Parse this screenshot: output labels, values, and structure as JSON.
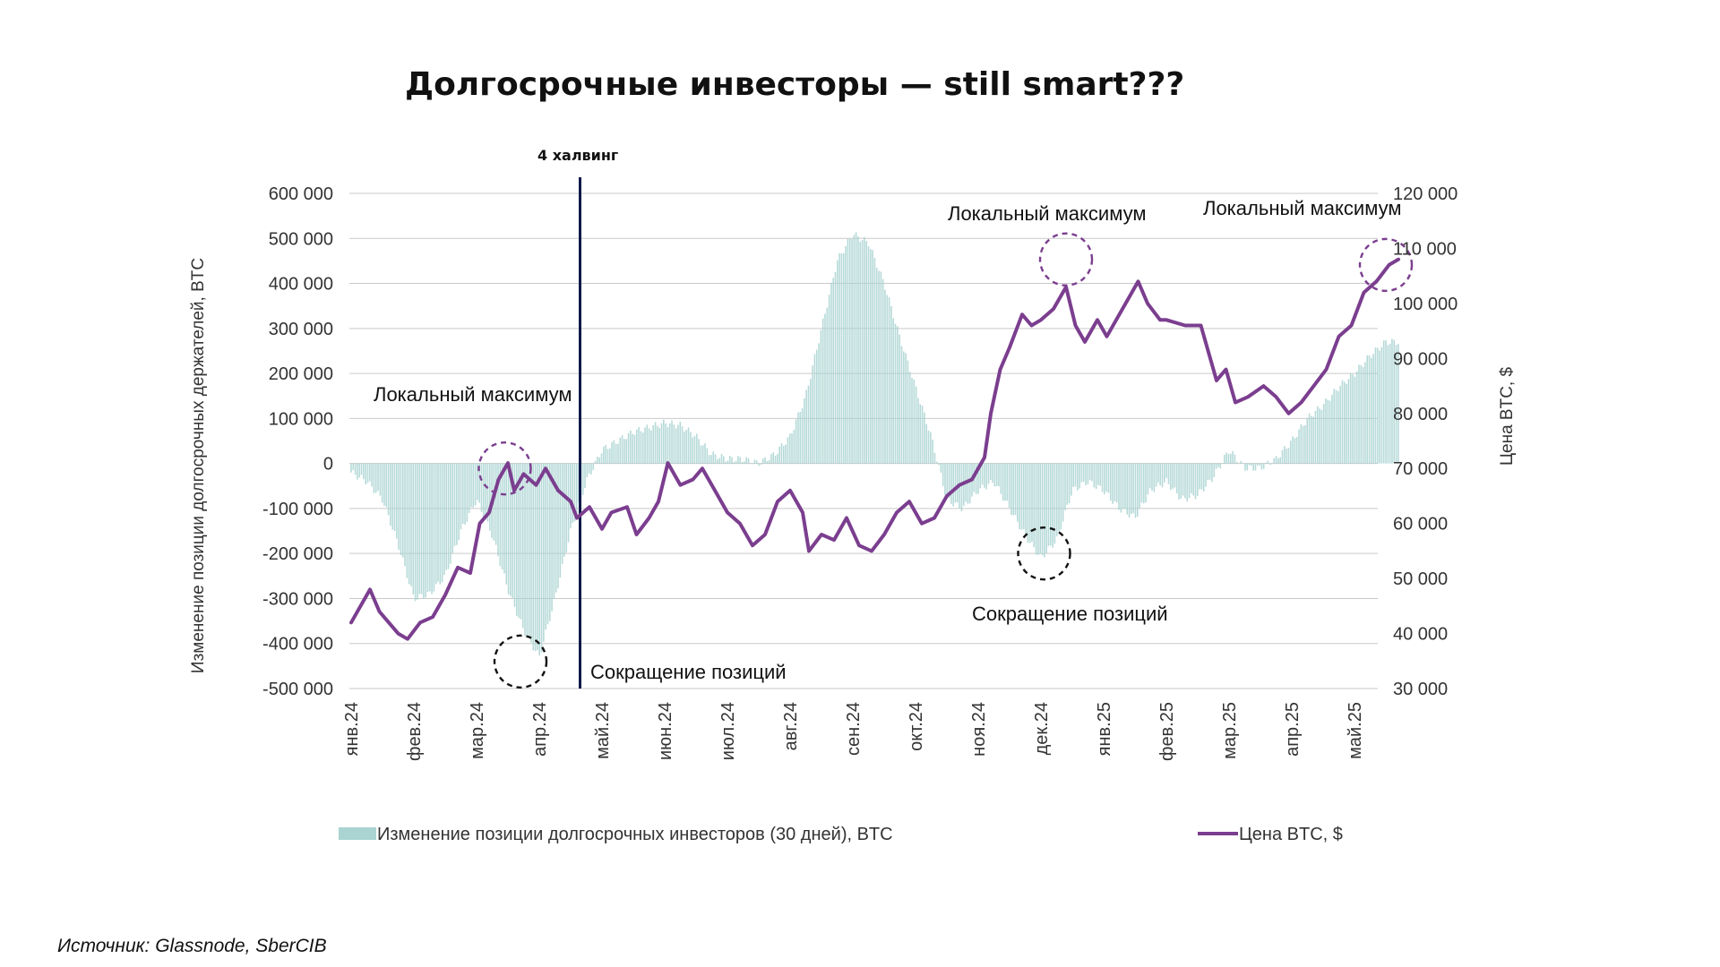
{
  "title": "Долгосрочные инвесторы — still smart???",
  "source": "Источник: Glassnode, SberCIB",
  "chart_data": {
    "type": "bar+line",
    "categories": [
      "янв.24",
      "фев.24",
      "мар.24",
      "апр.24",
      "май.24",
      "июн.24",
      "июл.24",
      "авг.24",
      "сен.24",
      "окт.24",
      "ноя.24",
      "дек.24",
      "янв.25",
      "фев.25",
      "мар.25",
      "апр.25",
      "май.25"
    ],
    "y_left": {
      "label": "Изменение позиции долгосрочных держателей, BTC",
      "ticks": [
        "600 000",
        "500 000",
        "400 000",
        "300 000",
        "200 000",
        "100 000",
        "0",
        "-100 000",
        "-200 000",
        "-300 000",
        "-400 000",
        "-500 000"
      ],
      "range": [
        -500000,
        600000
      ]
    },
    "y_right": {
      "label": "Цена BTC, $",
      "ticks": [
        "120 000",
        "110 000",
        "100 000",
        "90 000",
        "80 000",
        "70 000",
        "60 000",
        "50 000",
        "40 000",
        "30 000"
      ],
      "range": [
        30000,
        120000
      ]
    },
    "grid": true,
    "legend_position": "bottom",
    "series": [
      {
        "name": "Изменение позиции долгосрочных инвесторов (30 дней), BTC",
        "type": "bar",
        "color": "#a9d4d1",
        "points": [
          [
            0,
            -20000
          ],
          [
            0.25,
            -40000
          ],
          [
            0.5,
            -80000
          ],
          [
            0.75,
            -180000
          ],
          [
            1,
            -300000
          ],
          [
            1.25,
            -290000
          ],
          [
            1.5,
            -250000
          ],
          [
            1.75,
            -150000
          ],
          [
            2,
            -80000
          ],
          [
            2.25,
            -160000
          ],
          [
            2.5,
            -280000
          ],
          [
            2.75,
            -370000
          ],
          [
            3,
            -430000
          ],
          [
            3.25,
            -300000
          ],
          [
            3.5,
            -150000
          ],
          [
            3.75,
            -40000
          ],
          [
            4,
            30000
          ],
          [
            4.25,
            50000
          ],
          [
            4.5,
            70000
          ],
          [
            4.75,
            80000
          ],
          [
            5,
            90000
          ],
          [
            5.25,
            85000
          ],
          [
            5.5,
            60000
          ],
          [
            5.75,
            20000
          ],
          [
            6,
            10000
          ],
          [
            6.25,
            10000
          ],
          [
            6.5,
            0
          ],
          [
            6.75,
            20000
          ],
          [
            7,
            60000
          ],
          [
            7.25,
            150000
          ],
          [
            7.5,
            300000
          ],
          [
            7.75,
            450000
          ],
          [
            8,
            510000
          ],
          [
            8.25,
            490000
          ],
          [
            8.5,
            400000
          ],
          [
            8.75,
            280000
          ],
          [
            9,
            170000
          ],
          [
            9.25,
            60000
          ],
          [
            9.5,
            -80000
          ],
          [
            9.75,
            -100000
          ],
          [
            10,
            -60000
          ],
          [
            10.25,
            -40000
          ],
          [
            10.5,
            -100000
          ],
          [
            10.75,
            -160000
          ],
          [
            11,
            -210000
          ],
          [
            11.25,
            -170000
          ],
          [
            11.5,
            -60000
          ],
          [
            11.75,
            -40000
          ],
          [
            12,
            -60000
          ],
          [
            12.25,
            -100000
          ],
          [
            12.5,
            -120000
          ],
          [
            12.75,
            -60000
          ],
          [
            13,
            -40000
          ],
          [
            13.25,
            -80000
          ],
          [
            13.5,
            -70000
          ],
          [
            13.75,
            -30000
          ],
          [
            14,
            30000
          ],
          [
            14.25,
            -10000
          ],
          [
            14.5,
            -10000
          ],
          [
            14.75,
            10000
          ],
          [
            15,
            50000
          ],
          [
            15.25,
            100000
          ],
          [
            15.5,
            130000
          ],
          [
            15.75,
            170000
          ],
          [
            16,
            200000
          ],
          [
            16.25,
            240000
          ],
          [
            16.5,
            270000
          ],
          [
            16.7,
            270000
          ]
        ]
      },
      {
        "name": "Цена BTC, $",
        "type": "line",
        "color": "#7b3e8f",
        "points": [
          [
            0,
            42000
          ],
          [
            0.15,
            45000
          ],
          [
            0.3,
            48000
          ],
          [
            0.45,
            44000
          ],
          [
            0.6,
            42000
          ],
          [
            0.75,
            40000
          ],
          [
            0.9,
            39000
          ],
          [
            1.1,
            42000
          ],
          [
            1.3,
            43000
          ],
          [
            1.5,
            47000
          ],
          [
            1.7,
            52000
          ],
          [
            1.9,
            51000
          ],
          [
            2.05,
            60000
          ],
          [
            2.2,
            62000
          ],
          [
            2.35,
            68000
          ],
          [
            2.5,
            71000
          ],
          [
            2.6,
            66000
          ],
          [
            2.75,
            69000
          ],
          [
            2.95,
            67000
          ],
          [
            3.1,
            70000
          ],
          [
            3.3,
            66000
          ],
          [
            3.5,
            64000
          ],
          [
            3.6,
            61000
          ],
          [
            3.8,
            63000
          ],
          [
            4,
            59000
          ],
          [
            4.15,
            62000
          ],
          [
            4.4,
            63000
          ],
          [
            4.55,
            58000
          ],
          [
            4.75,
            61000
          ],
          [
            4.9,
            64000
          ],
          [
            5.05,
            71000
          ],
          [
            5.25,
            67000
          ],
          [
            5.45,
            68000
          ],
          [
            5.6,
            70000
          ],
          [
            5.8,
            66000
          ],
          [
            6,
            62000
          ],
          [
            6.2,
            60000
          ],
          [
            6.4,
            56000
          ],
          [
            6.6,
            58000
          ],
          [
            6.8,
            64000
          ],
          [
            7,
            66000
          ],
          [
            7.2,
            62000
          ],
          [
            7.3,
            55000
          ],
          [
            7.5,
            58000
          ],
          [
            7.7,
            57000
          ],
          [
            7.9,
            61000
          ],
          [
            8.1,
            56000
          ],
          [
            8.3,
            55000
          ],
          [
            8.5,
            58000
          ],
          [
            8.7,
            62000
          ],
          [
            8.9,
            64000
          ],
          [
            9.1,
            60000
          ],
          [
            9.3,
            61000
          ],
          [
            9.5,
            65000
          ],
          [
            9.7,
            67000
          ],
          [
            9.9,
            68000
          ],
          [
            10.1,
            72000
          ],
          [
            10.2,
            80000
          ],
          [
            10.35,
            88000
          ],
          [
            10.5,
            92000
          ],
          [
            10.7,
            98000
          ],
          [
            10.85,
            96000
          ],
          [
            11,
            97000
          ],
          [
            11.2,
            99000
          ],
          [
            11.4,
            103000
          ],
          [
            11.55,
            96000
          ],
          [
            11.7,
            93000
          ],
          [
            11.9,
            97000
          ],
          [
            12.05,
            94000
          ],
          [
            12.2,
            97000
          ],
          [
            12.4,
            101000
          ],
          [
            12.55,
            104000
          ],
          [
            12.7,
            100000
          ],
          [
            12.9,
            97000
          ],
          [
            13,
            97000
          ],
          [
            13.3,
            96000
          ],
          [
            13.55,
            96000
          ],
          [
            13.8,
            86000
          ],
          [
            13.95,
            88000
          ],
          [
            14.1,
            82000
          ],
          [
            14.3,
            83000
          ],
          [
            14.55,
            85000
          ],
          [
            14.75,
            83000
          ],
          [
            14.95,
            80000
          ],
          [
            15.15,
            82000
          ],
          [
            15.35,
            85000
          ],
          [
            15.55,
            88000
          ],
          [
            15.75,
            94000
          ],
          [
            15.95,
            96000
          ],
          [
            16.15,
            102000
          ],
          [
            16.35,
            104000
          ],
          [
            16.55,
            107000
          ],
          [
            16.7,
            108000
          ]
        ]
      }
    ],
    "annotations": [
      {
        "text": "4 халвинг"
      },
      {
        "text": "Локальный максимум"
      },
      {
        "text": "Локальный максимум"
      },
      {
        "text": "Локальный максимум"
      },
      {
        "text": "Сокращение позиций"
      },
      {
        "text": "Сокращение позиций"
      }
    ]
  }
}
